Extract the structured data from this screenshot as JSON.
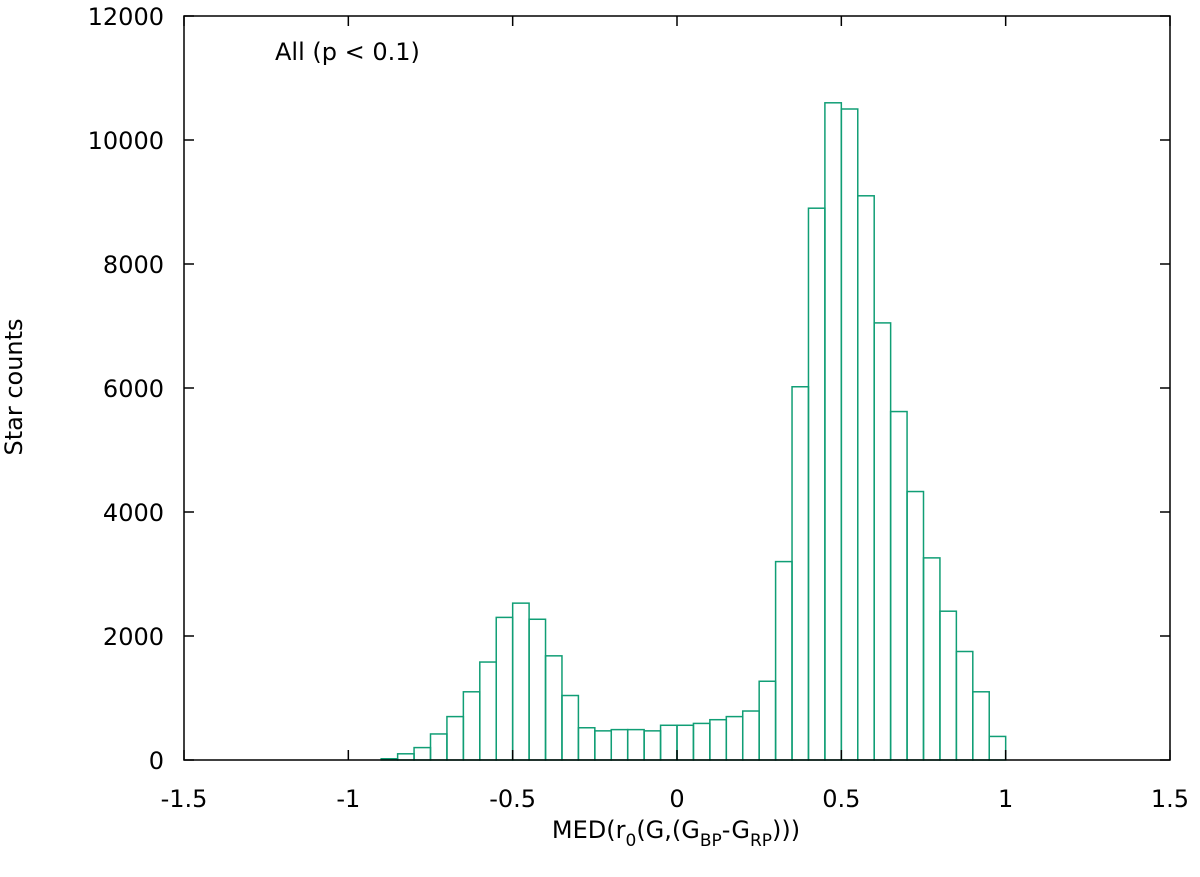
{
  "chart_data": {
    "type": "bar",
    "subtype": "histogram",
    "annotation": "All (p < 0.1)",
    "xlabel": {
      "prefix": "MED(r",
      "sub1": "0",
      "mid": "(G,(G",
      "sub2": "BP",
      "dash": "-G",
      "sub3": "RP",
      "suffix": ")))"
    },
    "ylabel": "Star counts",
    "xlim": [
      -1.5,
      1.5
    ],
    "ylim": [
      0,
      12000
    ],
    "xticks": [
      -1.5,
      -1,
      -0.5,
      0,
      0.5,
      1,
      1.5
    ],
    "xtick_labels": [
      "-1.5",
      "-1",
      "-0.5",
      "0",
      "0.5",
      "1",
      "1.5"
    ],
    "yticks": [
      0,
      2000,
      4000,
      6000,
      8000,
      10000,
      12000
    ],
    "ytick_labels": [
      "0",
      "2000",
      "4000",
      "6000",
      "8000",
      "10000",
      "12000"
    ],
    "grid": false,
    "color": "#109e75",
    "bin_width": 0.05,
    "bin_start": -0.9,
    "values": [
      20,
      100,
      200,
      420,
      700,
      1100,
      1580,
      2300,
      2530,
      2270,
      1680,
      1040,
      520,
      470,
      490,
      490,
      470,
      560,
      560,
      590,
      650,
      700,
      790,
      1270,
      3200,
      6020,
      8900,
      10600,
      10500,
      9100,
      7050,
      5620,
      4330,
      3260,
      2400,
      1750,
      1100,
      380
    ]
  }
}
